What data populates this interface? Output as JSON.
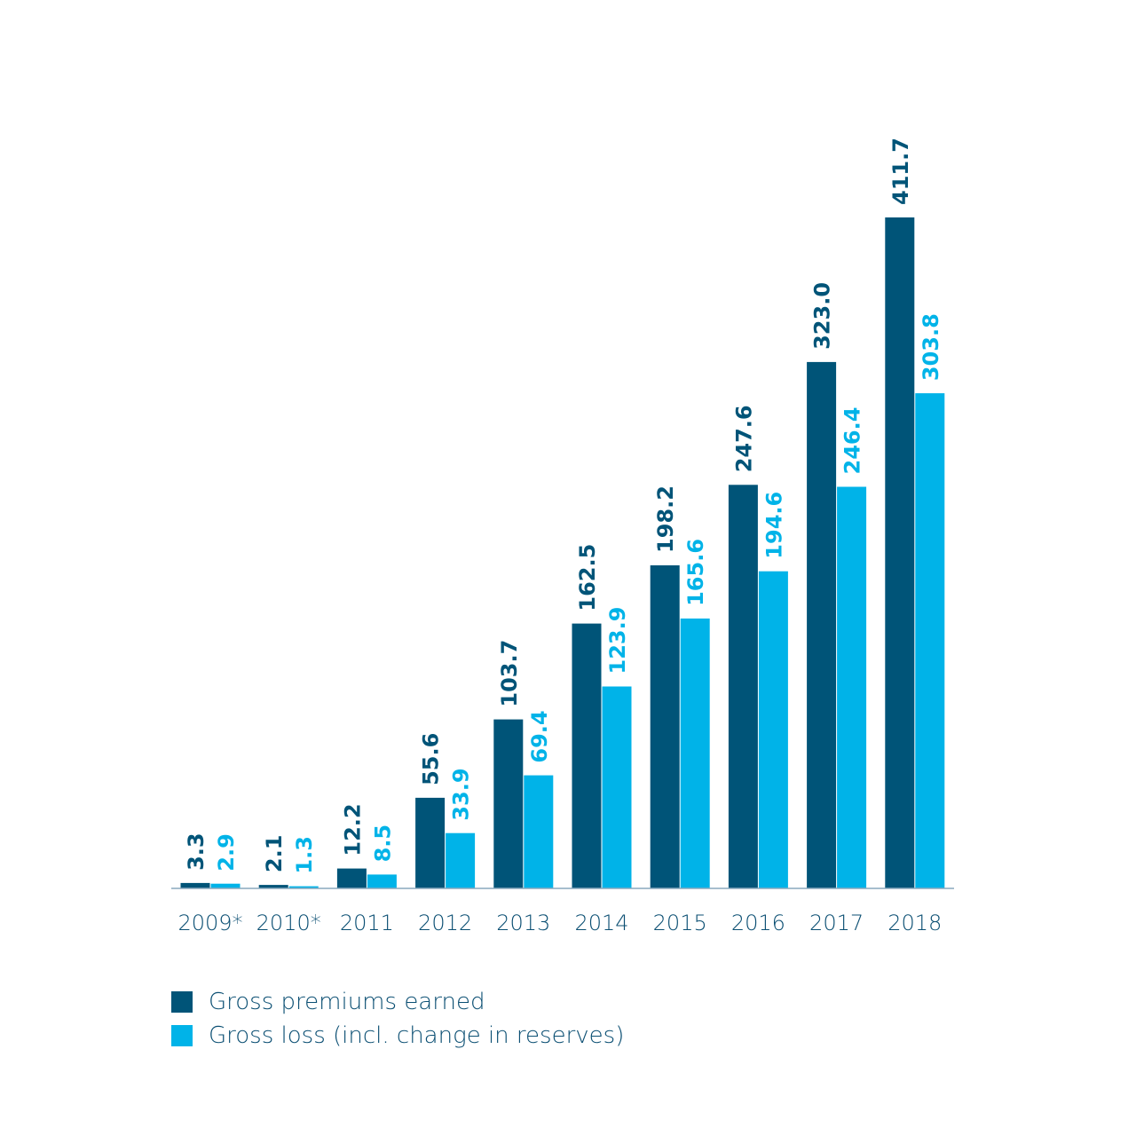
{
  "chart_data": {
    "type": "bar",
    "categories": [
      "2009*",
      "2010*",
      "2011",
      "2012",
      "2013",
      "2014",
      "2015",
      "2016",
      "2017",
      "2018"
    ],
    "series": [
      {
        "name": "Gross premiums earned",
        "color": "#005478",
        "values": [
          3.3,
          2.1,
          12.2,
          55.6,
          103.7,
          162.5,
          198.2,
          247.6,
          323.0,
          411.7
        ],
        "labels": [
          "3.3",
          "2.1",
          "12.2",
          "55.6",
          "103.7",
          "162.5",
          "198.2",
          "247.6",
          "323.0",
          "411.7"
        ]
      },
      {
        "name": "Gross loss (incl. change in reserves)",
        "color": "#00b3e8",
        "values": [
          2.9,
          1.3,
          8.5,
          33.9,
          69.4,
          123.9,
          165.6,
          194.6,
          246.4,
          303.8
        ],
        "labels": [
          "2.9",
          "1.3",
          "8.5",
          "33.9",
          "69.4",
          "123.9",
          "165.6",
          "194.6",
          "246.4",
          "303.8"
        ]
      }
    ],
    "title": "",
    "xlabel": "",
    "ylabel": "",
    "ylim": [
      0,
      411.7
    ],
    "grid": false,
    "legend_position": "bottom-left"
  }
}
